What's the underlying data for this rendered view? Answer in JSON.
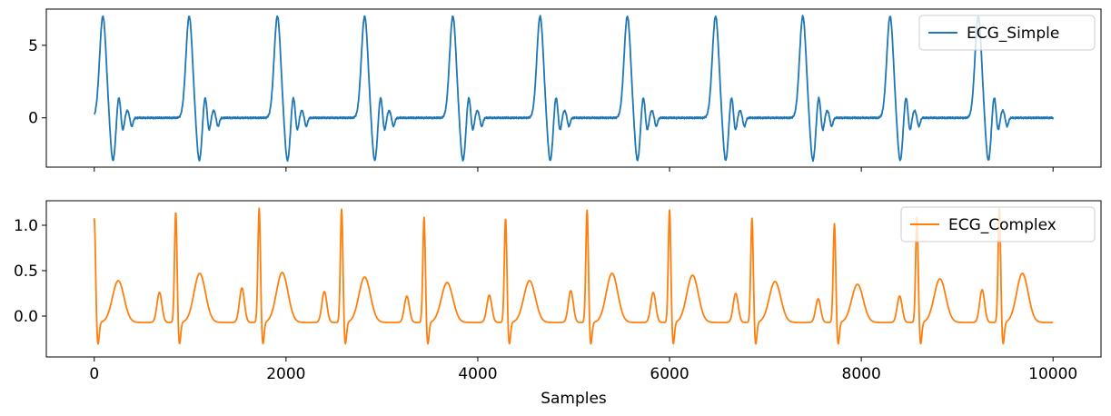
{
  "chart_data": [
    {
      "type": "line",
      "xlabel": "",
      "xlim": [
        -500,
        10500
      ],
      "ylim": [
        -3.4,
        7.5
      ],
      "xticks": [
        0,
        2000,
        4000,
        6000,
        8000,
        10000
      ],
      "xtick_labels_visible": false,
      "yticks": [
        0,
        5
      ],
      "ytick_labels": [
        "0",
        "5"
      ],
      "legend_position": "top-right",
      "grid": false,
      "series": [
        {
          "name": "ECG_Simple",
          "color": "#1f77b4",
          "samples": 10000,
          "beat_times": [
            90,
            990,
            1910,
            2820,
            3740,
            4650,
            5560,
            6480,
            7390,
            8300,
            9220
          ],
          "r_peak": 7.0,
          "s_trough": -3.0,
          "secondary_peak": 1.6,
          "baseline": 0.0
        }
      ]
    },
    {
      "type": "line",
      "xlabel": "Samples",
      "xlim": [
        -500,
        10500
      ],
      "ylim": [
        -0.45,
        1.27
      ],
      "xticks": [
        0,
        2000,
        4000,
        6000,
        8000,
        10000
      ],
      "xtick_labels": [
        "0",
        "2000",
        "4000",
        "6000",
        "8000",
        "10000"
      ],
      "yticks": [
        0.0,
        0.5,
        1.0
      ],
      "ytick_labels": [
        "0.0",
        "0.5",
        "1.0"
      ],
      "legend_position": "top-right",
      "grid": false,
      "series": [
        {
          "name": "ECG_Complex",
          "color": "#ff7f0e",
          "samples": 10000,
          "r_peaks": [
            [
              0,
              1.08
            ],
            [
              850,
              1.15
            ],
            [
              1720,
              1.19
            ],
            [
              2580,
              1.18
            ],
            [
              3440,
              1.09
            ],
            [
              4290,
              1.08
            ],
            [
              5140,
              1.17
            ],
            [
              6000,
              1.17
            ],
            [
              6860,
              1.08
            ],
            [
              7720,
              1.02
            ],
            [
              8580,
              1.09
            ],
            [
              9440,
              1.19
            ]
          ],
          "t_wave_peaks": [
            [
              250,
              0.39
            ],
            [
              1100,
              0.47
            ],
            [
              1960,
              0.48
            ],
            [
              2820,
              0.43
            ],
            [
              3680,
              0.37
            ],
            [
              4540,
              0.39
            ],
            [
              5400,
              0.47
            ],
            [
              6240,
              0.45
            ],
            [
              7100,
              0.38
            ],
            [
              7960,
              0.35
            ],
            [
              8820,
              0.41
            ],
            [
              9680,
              0.47
            ]
          ],
          "p_wave_peaks": [
            [
              680,
              0.26
            ],
            [
              1540,
              0.31
            ],
            [
              2400,
              0.27
            ],
            [
              3260,
              0.22
            ],
            [
              4120,
              0.23
            ],
            [
              4970,
              0.28
            ],
            [
              5830,
              0.26
            ],
            [
              6690,
              0.25
            ],
            [
              7550,
              0.19
            ],
            [
              8400,
              0.22
            ],
            [
              9260,
              0.29
            ]
          ],
          "s_trough": -0.32,
          "baseline": -0.07
        }
      ]
    }
  ]
}
